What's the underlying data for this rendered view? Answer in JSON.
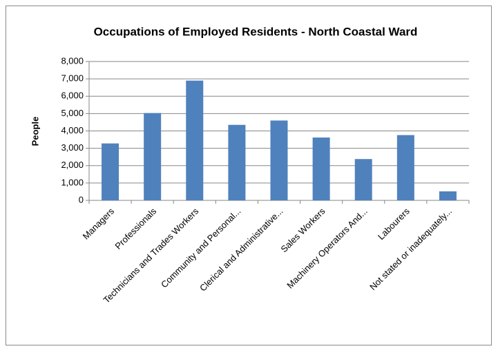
{
  "chart_data": {
    "type": "bar",
    "title": "Occupations of Employed Residents - North Coastal Ward",
    "y_label": "People",
    "categories": [
      "Managers",
      "Professionals",
      "Technicians and Trades Workers",
      "Community and Personal...",
      "Clerical and Administrative...",
      "Sales Workers",
      "Machinery Operators And...",
      "Labourers",
      "Not stated or inadequately..."
    ],
    "values": [
      3280,
      5030,
      6900,
      4350,
      4600,
      3620,
      2380,
      3760,
      520
    ],
    "color": "#4f81bd",
    "ylim": [
      0,
      8000
    ],
    "yticks": [
      0,
      {
        "value": 1000,
        "label": "1,000"
      },
      {
        "value": 2000,
        "label": "2,000"
      },
      {
        "value": 3000,
        "label": "3,000"
      },
      {
        "value": 4000,
        "label": "4,000"
      },
      {
        "value": 5000,
        "label": "5,000"
      },
      {
        "value": 6000,
        "label": "6,000"
      },
      {
        "value": 7000,
        "label": "7,000"
      },
      {
        "value": 8000,
        "label": "8,000"
      }
    ],
    "grid": true
  }
}
